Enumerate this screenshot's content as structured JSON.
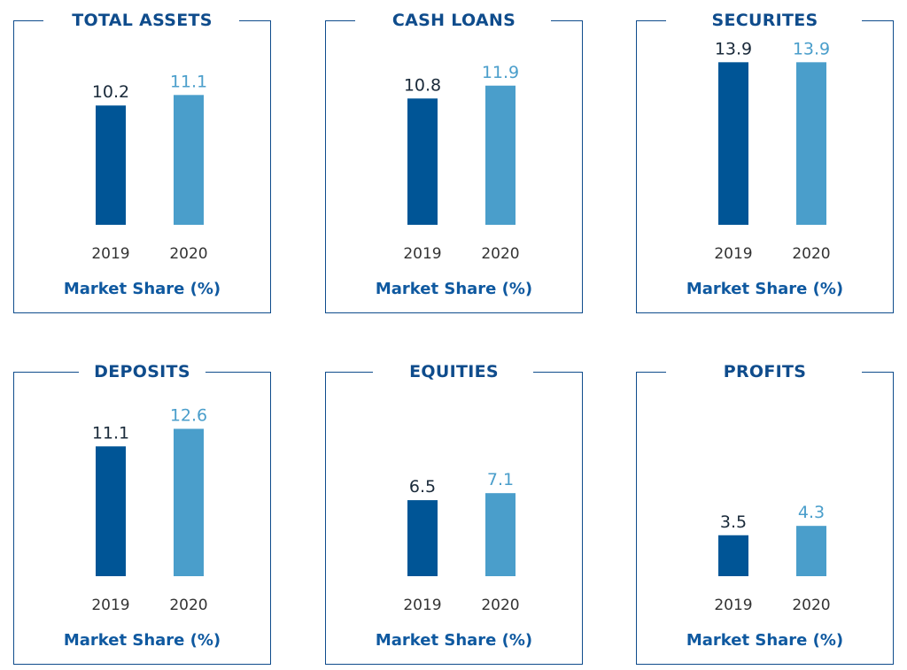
{
  "colors": {
    "series_2019": "#005596",
    "series_2020": "#4a9ecb",
    "frame": "#0f4c8c",
    "label_dark": "#1a2a3a",
    "label_light": "#4a9ecb",
    "tick": "#333333"
  },
  "chart_data": [
    {
      "type": "bar",
      "title": "TOTAL ASSETS",
      "categories": [
        "2019",
        "2020"
      ],
      "values": [
        10.2,
        11.1
      ],
      "xlabel": "Market Share (%)",
      "ylabel": "",
      "ylim": [
        0,
        14
      ]
    },
    {
      "type": "bar",
      "title": "CASH LOANS",
      "categories": [
        "2019",
        "2020"
      ],
      "values": [
        10.8,
        11.9
      ],
      "xlabel": "Market Share (%)",
      "ylabel": "",
      "ylim": [
        0,
        14
      ]
    },
    {
      "type": "bar",
      "title": "SECURITES",
      "categories": [
        "2019",
        "2020"
      ],
      "values": [
        13.9,
        13.9
      ],
      "xlabel": "Market Share (%)",
      "ylabel": "",
      "ylim": [
        0,
        14
      ]
    },
    {
      "type": "bar",
      "title": "DEPOSITS",
      "categories": [
        "2019",
        "2020"
      ],
      "values": [
        11.1,
        12.6
      ],
      "xlabel": "Market Share (%)",
      "ylabel": "",
      "ylim": [
        0,
        14
      ]
    },
    {
      "type": "bar",
      "title": "EQUITIES",
      "categories": [
        "2019",
        "2020"
      ],
      "values": [
        6.5,
        7.1
      ],
      "xlabel": "Market Share (%)",
      "ylabel": "",
      "ylim": [
        0,
        14
      ]
    },
    {
      "type": "bar",
      "title": "PROFITS",
      "categories": [
        "2019",
        "2020"
      ],
      "values": [
        3.5,
        4.3
      ],
      "xlabel": "Market Share (%)",
      "ylabel": "",
      "ylim": [
        0,
        14
      ]
    }
  ]
}
